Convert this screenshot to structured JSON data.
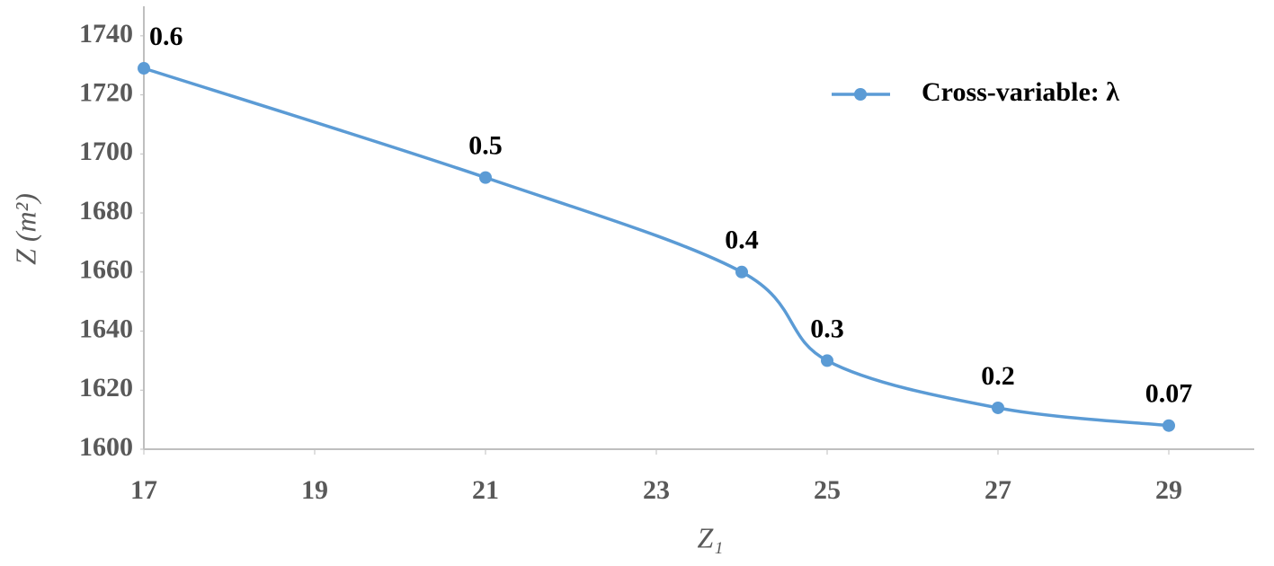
{
  "chart_data": {
    "type": "line",
    "x": [
      17,
      21,
      24,
      25,
      27,
      29
    ],
    "series": [
      {
        "name": "Cross-variable: λ",
        "color": "#5b9bd5",
        "values": [
          1729,
          1692,
          1660,
          1630,
          1614,
          1608
        ]
      }
    ],
    "annotations": [
      "0.6",
      "0.5",
      "0.4",
      "0.3",
      "0.2",
      "0.07"
    ],
    "xlabel": "Z₁",
    "ylabel": "Z (m²)",
    "xlim": [
      17,
      30
    ],
    "ylim": [
      1600,
      1750
    ],
    "xticks": [
      17,
      19,
      21,
      23,
      25,
      27,
      29
    ],
    "yticks": [
      1600,
      1620,
      1640,
      1660,
      1680,
      1700,
      1720,
      1740
    ],
    "grid": false,
    "legend": "upper right",
    "smooth": true
  }
}
